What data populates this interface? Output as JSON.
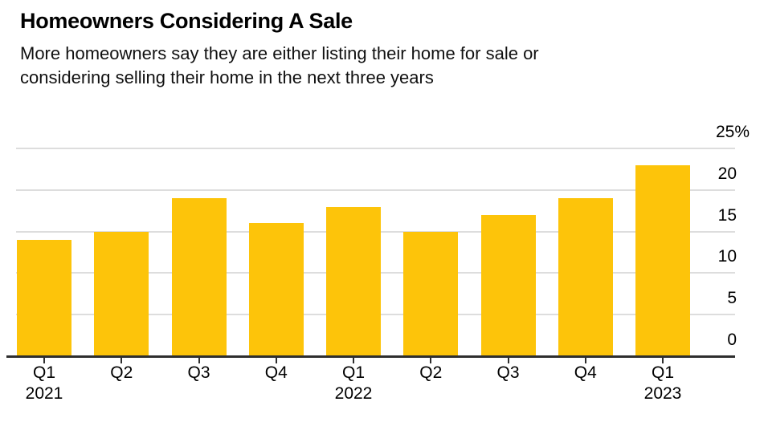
{
  "chart_data": {
    "type": "bar",
    "title": "Homeowners Considering A Sale",
    "subtitle": "More homeowners say they are either listing their home for sale or considering selling their home in the next three years",
    "subtitle_lines": [
      "More homeowners say they are either listing their home for sale or",
      "considering selling their home in the next three years"
    ],
    "categories": [
      "Q1 2021",
      "Q2 2021",
      "Q3 2021",
      "Q4 2021",
      "Q1 2022",
      "Q2 2022",
      "Q3 2022",
      "Q4 2022",
      "Q1 2023"
    ],
    "values": [
      14,
      15,
      19,
      16,
      18,
      15,
      17,
      19,
      23
    ],
    "unit": "%",
    "xlabel": "",
    "ylabel": "",
    "ylim": [
      0,
      25
    ],
    "y_ticks": [
      25,
      20,
      15,
      10,
      5,
      0
    ],
    "y_tick_labels": [
      "25%",
      "20",
      "15",
      "10",
      "5",
      "0"
    ],
    "x_tick_labels": [
      {
        "quarter": "Q1",
        "year": "2021"
      },
      {
        "quarter": "Q2",
        "year": ""
      },
      {
        "quarter": "Q3",
        "year": ""
      },
      {
        "quarter": "Q4",
        "year": ""
      },
      {
        "quarter": "Q1",
        "year": "2022"
      },
      {
        "quarter": "Q2",
        "year": ""
      },
      {
        "quarter": "Q3",
        "year": ""
      },
      {
        "quarter": "Q4",
        "year": ""
      },
      {
        "quarter": "Q1",
        "year": "2023"
      }
    ],
    "grid": "horizontal",
    "value_axis_side": "right",
    "legend": "none",
    "bar_color": "#FDC40A",
    "grid_color": "#DDDDDD",
    "axis_color": "#2E2E2E",
    "text_color": "#000000",
    "background_color": "#FFFFFF"
  }
}
